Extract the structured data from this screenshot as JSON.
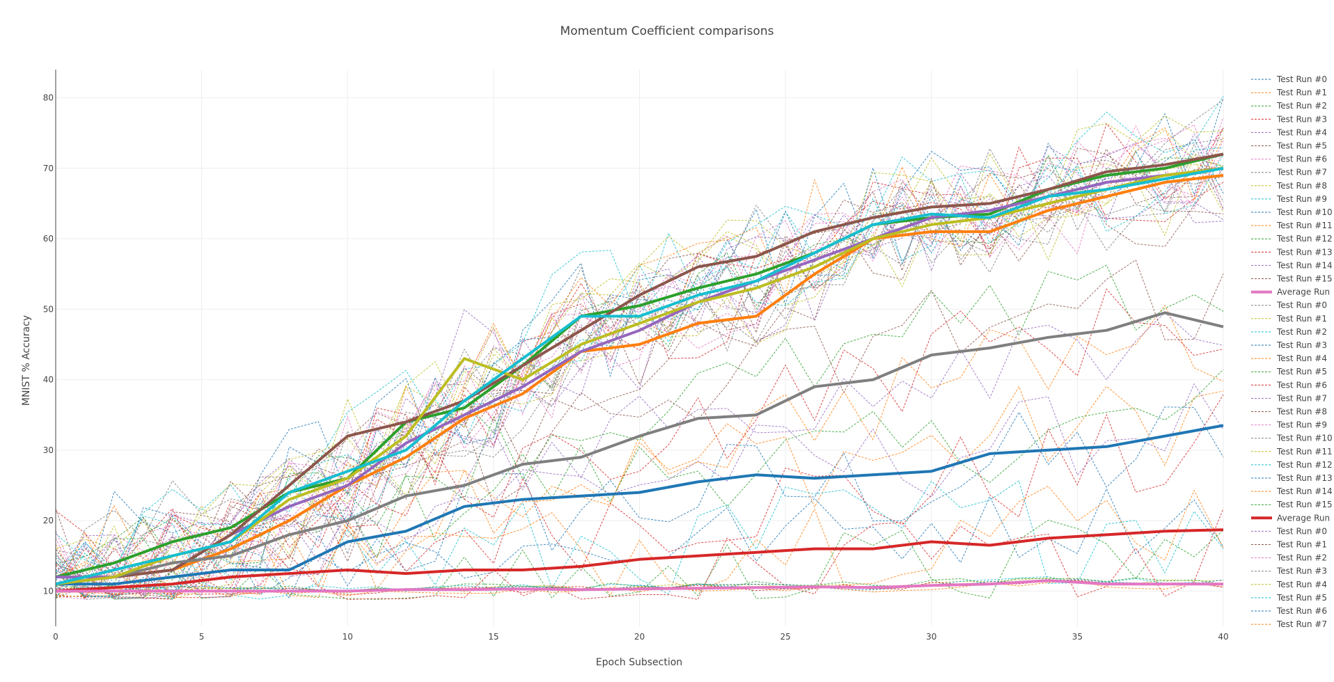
{
  "chart_data": {
    "type": "line",
    "title": "Momentum Coefficient comparisons",
    "xlabel": "Epoch Subsection",
    "ylabel": "MNIST % Accuracy",
    "xlim": [
      0,
      40
    ],
    "ylim": [
      5,
      84
    ],
    "x_ticks": [
      "0",
      "5",
      "10",
      "15",
      "20",
      "25",
      "30",
      "35",
      "40"
    ],
    "y_ticks": [
      "10",
      "20",
      "30",
      "40",
      "50",
      "60",
      "70",
      "80"
    ],
    "grid": true,
    "legend_position": "right",
    "colors": [
      "#1f77b4",
      "#ff7f0e",
      "#2ca02c",
      "#d62728",
      "#9467bd",
      "#8c564b",
      "#e377c2",
      "#7f7f7f",
      "#bcbd22",
      "#17becf"
    ],
    "legend": [
      {
        "name": "Test Run #0",
        "color": "#1f77b4",
        "style": "dash"
      },
      {
        "name": "Test Run #1",
        "color": "#ff7f0e",
        "style": "dash"
      },
      {
        "name": "Test Run #2",
        "color": "#2ca02c",
        "style": "dash"
      },
      {
        "name": "Test Run #3",
        "color": "#d62728",
        "style": "dash"
      },
      {
        "name": "Test Run #4",
        "color": "#9467bd",
        "style": "dash"
      },
      {
        "name": "Test Run #5",
        "color": "#8c564b",
        "style": "dash"
      },
      {
        "name": "Test Run #6",
        "color": "#e377c2",
        "style": "dash"
      },
      {
        "name": "Test Run #7",
        "color": "#7f7f7f",
        "style": "dash"
      },
      {
        "name": "Test Run #8",
        "color": "#bcbd22",
        "style": "dash"
      },
      {
        "name": "Test Run #9",
        "color": "#17becf",
        "style": "dash"
      },
      {
        "name": "Test Run #10",
        "color": "#1f77b4",
        "style": "dash"
      },
      {
        "name": "Test Run #11",
        "color": "#ff7f0e",
        "style": "dash"
      },
      {
        "name": "Test Run #12",
        "color": "#2ca02c",
        "style": "dash"
      },
      {
        "name": "Test Run #13",
        "color": "#d62728",
        "style": "dash"
      },
      {
        "name": "Test Run #14",
        "color": "#9467bd",
        "style": "dash"
      },
      {
        "name": "Test Run #15",
        "color": "#8c564b",
        "style": "dash"
      },
      {
        "name": "Average Run",
        "color": "#e377c2",
        "style": "solid"
      },
      {
        "name": "Test Run #0",
        "color": "#7f7f7f",
        "style": "dash"
      },
      {
        "name": "Test Run #1",
        "color": "#bcbd22",
        "style": "dash"
      },
      {
        "name": "Test Run #2",
        "color": "#17becf",
        "style": "dash"
      },
      {
        "name": "Test Run #3",
        "color": "#1f77b4",
        "style": "dash"
      },
      {
        "name": "Test Run #4",
        "color": "#ff7f0e",
        "style": "dash"
      },
      {
        "name": "Test Run #5",
        "color": "#2ca02c",
        "style": "dash"
      },
      {
        "name": "Test Run #6",
        "color": "#d62728",
        "style": "dash"
      },
      {
        "name": "Test Run #7",
        "color": "#9467bd",
        "style": "dash"
      },
      {
        "name": "Test Run #8",
        "color": "#8c564b",
        "style": "dash"
      },
      {
        "name": "Test Run #9",
        "color": "#e377c2",
        "style": "dash"
      },
      {
        "name": "Test Run #10",
        "color": "#7f7f7f",
        "style": "dash"
      },
      {
        "name": "Test Run #11",
        "color": "#bcbd22",
        "style": "dash"
      },
      {
        "name": "Test Run #12",
        "color": "#17becf",
        "style": "dash"
      },
      {
        "name": "Test Run #13",
        "color": "#1f77b4",
        "style": "dash"
      },
      {
        "name": "Test Run #14",
        "color": "#ff7f0e",
        "style": "dash"
      },
      {
        "name": "Test Run #15",
        "color": "#2ca02c",
        "style": "dash"
      },
      {
        "name": "Average Run",
        "color": "#d62728",
        "style": "solid"
      },
      {
        "name": "Test Run #0",
        "color": "#9467bd",
        "style": "dash"
      },
      {
        "name": "Test Run #1",
        "color": "#8c564b",
        "style": "dash"
      },
      {
        "name": "Test Run #2",
        "color": "#e377c2",
        "style": "dash"
      },
      {
        "name": "Test Run #3",
        "color": "#7f7f7f",
        "style": "dash"
      },
      {
        "name": "Test Run #4",
        "color": "#bcbd22",
        "style": "dash"
      },
      {
        "name": "Test Run #5",
        "color": "#17becf",
        "style": "dash"
      },
      {
        "name": "Test Run #6",
        "color": "#1f77b4",
        "style": "dash"
      },
      {
        "name": "Test Run #7",
        "color": "#ff7f0e",
        "style": "dash"
      }
    ],
    "average_series": [
      {
        "color": "#1f77b4",
        "x": [
          0,
          2,
          4,
          6,
          8,
          10,
          12,
          14,
          16,
          18,
          20,
          22,
          24,
          26,
          28,
          30,
          32,
          34,
          36,
          38,
          40
        ],
        "y": [
          11,
          11,
          12,
          13,
          13,
          17,
          18.5,
          22,
          23,
          23.5,
          24,
          25.5,
          26.5,
          26,
          26.5,
          27,
          29.5,
          30,
          30.5,
          32,
          33.5
        ]
      },
      {
        "color": "#ff7f0e",
        "x": [
          0,
          2,
          4,
          6,
          8,
          10,
          12,
          14,
          16,
          18,
          20,
          22,
          24,
          26,
          28,
          30,
          32,
          34,
          36,
          38,
          40
        ],
        "y": [
          11,
          12,
          13,
          16,
          20,
          25,
          29,
          34.5,
          38,
          44,
          45,
          48,
          49,
          55,
          60,
          61,
          61,
          64,
          66,
          68,
          69
        ]
      },
      {
        "color": "#2ca02c",
        "x": [
          0,
          2,
          4,
          6,
          8,
          10,
          12,
          14,
          16,
          18,
          20,
          22,
          24,
          26,
          28,
          30,
          32,
          34,
          36,
          38,
          40
        ],
        "y": [
          12,
          14,
          17,
          19,
          24,
          26,
          34,
          36,
          42,
          49,
          50.5,
          53,
          55,
          58,
          62,
          63,
          63.5,
          67,
          69,
          70,
          72
        ]
      },
      {
        "color": "#d62728",
        "x": [
          0,
          2,
          4,
          6,
          8,
          10,
          12,
          14,
          16,
          18,
          20,
          22,
          24,
          26,
          28,
          30,
          32,
          34,
          36,
          38,
          40
        ],
        "y": [
          10,
          10.5,
          11,
          12,
          12.5,
          13,
          12.5,
          13,
          13,
          13.5,
          14.5,
          15,
          15.5,
          16,
          16,
          17,
          16.5,
          17.5,
          18,
          18.5,
          18.7
        ]
      },
      {
        "color": "#9467bd",
        "x": [
          0,
          2,
          4,
          6,
          8,
          10,
          12,
          14,
          16,
          18,
          20,
          22,
          24,
          26,
          28,
          30,
          32,
          34,
          36,
          38,
          40
        ],
        "y": [
          12,
          12,
          13,
          18,
          22,
          25,
          31,
          35,
          39,
          44,
          47,
          51,
          54,
          57,
          60,
          63,
          64,
          66,
          68,
          69,
          70
        ]
      },
      {
        "color": "#8c564b",
        "x": [
          0,
          2,
          4,
          6,
          8,
          10,
          12,
          14,
          16,
          18,
          20,
          22,
          24,
          26,
          28,
          30,
          32,
          34,
          36,
          38,
          40
        ],
        "y": [
          11,
          12,
          13,
          18,
          25,
          32,
          34,
          37,
          42,
          47,
          52,
          56,
          57.5,
          61,
          63,
          64.5,
          65,
          67,
          69.5,
          70.5,
          72
        ]
      },
      {
        "color": "#e377c2",
        "x": [
          0,
          2,
          4,
          6,
          8,
          10,
          12,
          14,
          16,
          18,
          20,
          22,
          24,
          26,
          28,
          30,
          32,
          34,
          36,
          38,
          40
        ],
        "y": [
          10,
          10,
          10,
          10,
          10,
          10,
          10.2,
          10.2,
          10.3,
          10.2,
          10.3,
          10.4,
          10.5,
          10.6,
          10.5,
          10.8,
          11,
          11.5,
          11,
          11,
          11
        ]
      },
      {
        "color": "#7f7f7f",
        "x": [
          0,
          2,
          4,
          6,
          8,
          10,
          12,
          14,
          16,
          18,
          20,
          22,
          24,
          26,
          28,
          30,
          32,
          34,
          36,
          38,
          40
        ],
        "y": [
          11,
          12,
          14,
          15,
          18,
          20,
          23.5,
          25,
          28,
          29,
          32,
          34.5,
          35,
          39,
          40,
          43.5,
          44.5,
          46,
          47,
          49.5,
          47.5
        ]
      },
      {
        "color": "#bcbd22",
        "x": [
          0,
          2,
          4,
          6,
          8,
          10,
          12,
          14,
          16,
          18,
          20,
          22,
          24,
          26,
          28,
          30,
          32,
          34,
          36,
          38,
          40
        ],
        "y": [
          11,
          12,
          15,
          17,
          23,
          26,
          32,
          43,
          40,
          45,
          48,
          51,
          53,
          56,
          60,
          62,
          63,
          65,
          67,
          69,
          70
        ]
      },
      {
        "color": "#17becf",
        "x": [
          0,
          2,
          4,
          6,
          8,
          10,
          12,
          14,
          16,
          18,
          20,
          22,
          24,
          26,
          28,
          30,
          32,
          34,
          36,
          38,
          40
        ],
        "y": [
          11,
          13,
          15,
          17,
          24,
          27,
          30,
          37,
          43,
          49,
          49,
          52,
          54,
          58,
          62,
          63.5,
          63,
          66,
          67,
          68.5,
          70
        ]
      }
    ]
  }
}
